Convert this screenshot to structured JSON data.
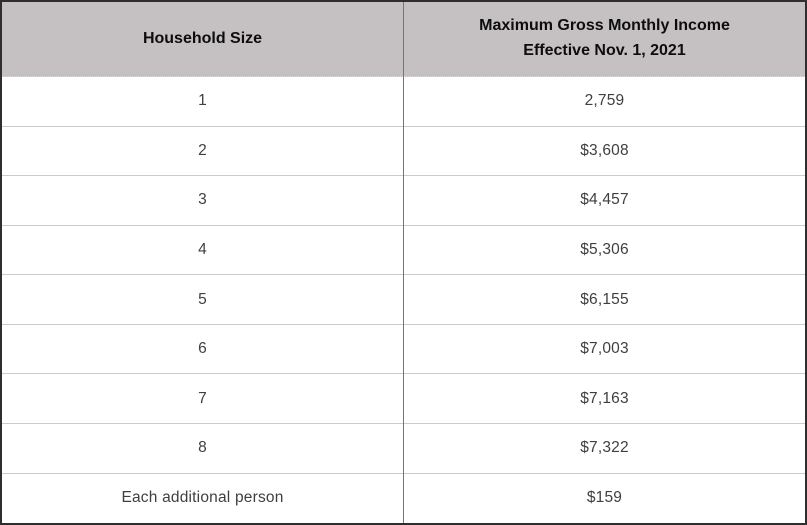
{
  "table": {
    "header": {
      "col1": "Household Size",
      "col2_line1": "Maximum Gross Monthly Income",
      "col2_line2": "Effective Nov. 1, 2021"
    },
    "rows": [
      {
        "size": "1",
        "income": "2,759"
      },
      {
        "size": "2",
        "income": "$3,608"
      },
      {
        "size": "3",
        "income": "$4,457"
      },
      {
        "size": "4",
        "income": "$5,306"
      },
      {
        "size": "5",
        "income": "$6,155"
      },
      {
        "size": "6",
        "income": "$7,003"
      },
      {
        "size": "7",
        "income": "$7,163"
      },
      {
        "size": "8",
        "income": "$7,322"
      },
      {
        "size": "Each additional person",
        "income": "$159"
      }
    ]
  },
  "colors": {
    "header_bg": "#c5c0c1",
    "outer_border": "#2e2e2e",
    "column_divider": "#777473",
    "row_divider": "#cbcbcb",
    "header_text": "#0d0d0d",
    "body_text": "#3f3f3f"
  }
}
